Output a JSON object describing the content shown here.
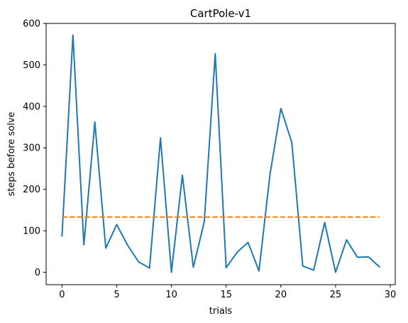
{
  "chart_data": {
    "type": "line",
    "title": "CartPole-v1",
    "xlabel": "trials",
    "ylabel": "steps before solve",
    "xlim": [
      -1.45,
      30.45
    ],
    "ylim": [
      -30,
      600
    ],
    "xticks": [
      0,
      5,
      10,
      15,
      20,
      25,
      30
    ],
    "yticks": [
      0,
      100,
      200,
      300,
      400,
      500,
      600
    ],
    "grid": false,
    "series": [
      {
        "color": "#1f77b4",
        "style": "solid",
        "x": [
          0,
          1,
          2,
          3,
          4,
          5,
          6,
          7,
          8,
          9,
          10,
          11,
          12,
          13,
          14,
          15,
          16,
          17,
          18,
          19,
          20,
          21,
          22,
          23,
          24,
          25,
          26,
          27,
          28,
          29
        ],
        "y": [
          88,
          572,
          66,
          362,
          58,
          115,
          65,
          25,
          10,
          324,
          0,
          234,
          12,
          122,
          527,
          11,
          48,
          72,
          3,
          235,
          395,
          313,
          15,
          5,
          120,
          0,
          78,
          36,
          37,
          13
        ]
      },
      {
        "color": "#ff7f0e",
        "style": "dashed",
        "x": [
          0,
          29
        ],
        "y": [
          133,
          133
        ]
      }
    ]
  }
}
